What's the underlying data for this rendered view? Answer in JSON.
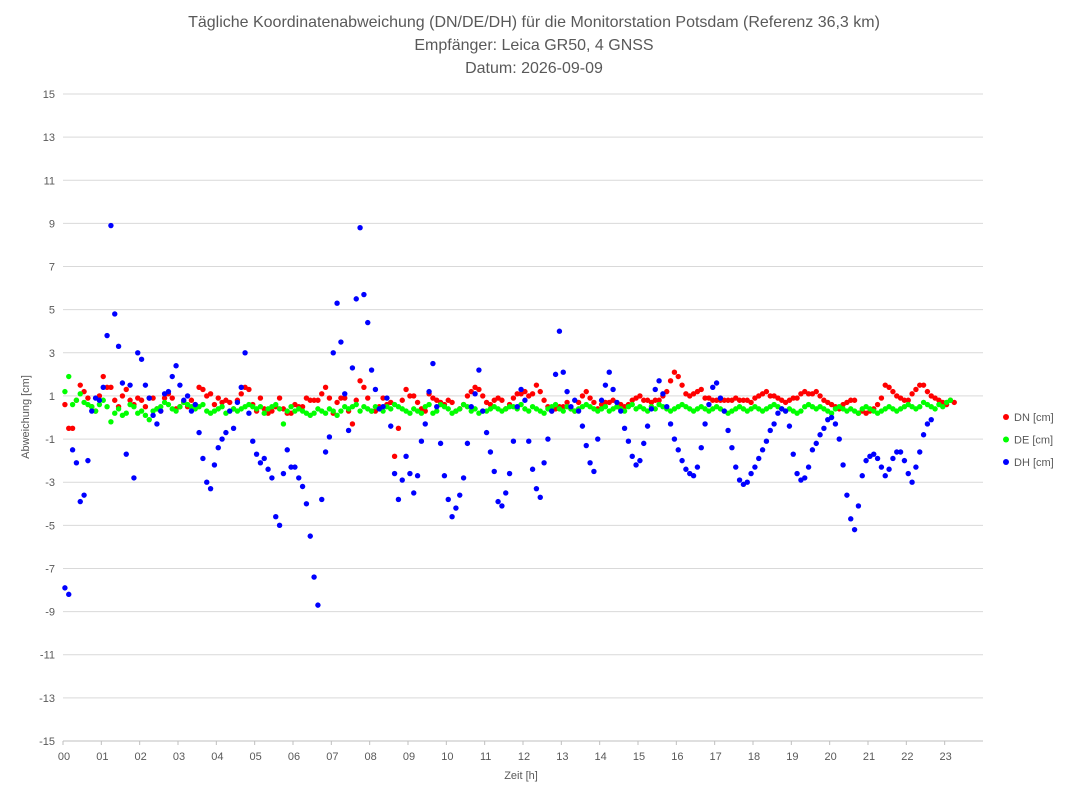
{
  "chart_data": {
    "type": "scatter",
    "title_lines": [
      "Tägliche Koordinatenabweichung (DN/DE/DH) für die Monitorstation Potsdam (Referenz 36,3 km)",
      "Empfänger: Leica GR50, 4 GNSS",
      "Datum: 2026-09-09"
    ],
    "xlabel": "Zeit [h]",
    "ylabel": "Abweichung [cm]",
    "xlim": [
      0,
      24
    ],
    "ylim": [
      -15,
      15
    ],
    "x_ticks": [
      "00",
      "01",
      "02",
      "03",
      "04",
      "05",
      "06",
      "07",
      "08",
      "09",
      "10",
      "11",
      "12",
      "13",
      "14",
      "15",
      "16",
      "17",
      "18",
      "19",
      "20",
      "21",
      "22",
      "23"
    ],
    "y_ticks": [
      15,
      13,
      11,
      9,
      7,
      5,
      3,
      1,
      -1,
      -3,
      -5,
      -7,
      -9,
      -11,
      -13,
      -15
    ],
    "grid": true,
    "legend_position": "right",
    "sample_interval_h": 0.025,
    "series": [
      {
        "name": "DN [cm]",
        "color": "#ff0000",
        "x_start": 0,
        "x_step": 0.1,
        "values": [
          0.6,
          -0.5,
          -0.5,
          0.8,
          1.5,
          1.2,
          0.9,
          0.5,
          0.3,
          1.0,
          1.9,
          1.4,
          1.4,
          0.8,
          0.5,
          1.0,
          1.3,
          0.8,
          0.6,
          0.9,
          0.8,
          0.5,
          0.9,
          0.9,
          0.4,
          0.3,
          0.9,
          1.1,
          0.9,
          0.4,
          0.5,
          0.7,
          0.5,
          0.8,
          0.6,
          1.4,
          1.3,
          1.0,
          1.1,
          0.6,
          0.9,
          0.7,
          0.8,
          0.7,
          0.4,
          0.8,
          1.1,
          1.4,
          1.3,
          0.6,
          0.3,
          0.9,
          0.4,
          0.2,
          0.3,
          0.5,
          0.9,
          0.4,
          0.2,
          0.2,
          0.6,
          0.5,
          0.5,
          0.9,
          0.8,
          0.8,
          0.8,
          1.1,
          1.4,
          0.9,
          0.2,
          0.7,
          0.9,
          0.9,
          0.3,
          -0.3,
          0.8,
          1.7,
          1.4,
          0.9,
          0.3,
          0.3,
          0.5,
          0.9,
          0.6,
          0.7,
          -1.8,
          -0.5,
          0.8,
          1.3,
          1.0,
          1.0,
          0.7,
          0.4,
          0.3,
          1.1,
          0.9,
          0.8,
          0.7,
          0.6,
          0.8,
          0.7,
          0.3,
          0.4,
          0.6,
          1.0,
          1.2,
          1.4,
          1.3,
          1.0,
          0.7,
          0.6,
          0.8,
          0.9,
          0.8,
          0.4,
          0.6,
          0.9,
          1.1,
          1.1,
          1.2,
          1.0,
          1.1,
          1.5,
          1.2,
          0.8,
          0.5,
          0.3,
          0.4,
          0.5,
          0.5,
          0.7,
          0.4,
          0.3,
          0.7,
          1.0,
          1.2,
          0.9,
          0.7,
          0.4,
          0.6,
          0.7,
          0.7,
          0.8,
          0.5,
          0.6,
          0.5,
          0.6,
          0.8,
          0.9,
          1.0,
          0.8,
          0.8,
          0.7,
          0.8,
          0.8,
          1.0,
          1.2,
          1.7,
          2.1,
          1.9,
          1.5,
          1.1,
          1.0,
          1.1,
          1.2,
          1.3,
          0.9,
          0.9,
          0.8,
          0.8,
          0.8,
          0.8,
          0.8,
          0.8,
          0.9,
          0.8,
          0.8,
          0.8,
          0.7,
          0.9,
          1.0,
          1.1,
          1.2,
          1.0,
          1.0,
          0.9,
          0.8,
          0.7,
          0.8,
          0.9,
          0.9,
          1.1,
          1.2,
          1.1,
          1.1,
          1.2,
          1.0,
          0.8,
          0.7,
          0.6,
          0.5,
          0.4,
          0.6,
          0.7,
          0.8,
          0.8,
          0.2,
          0.3,
          0.2,
          0.3,
          0.4,
          0.6,
          0.9,
          1.5,
          1.4,
          1.2,
          1.0,
          0.9,
          0.8,
          0.8,
          1.1,
          1.3,
          1.5,
          1.5,
          1.2,
          1.0,
          0.9,
          0.8,
          0.7,
          0.6,
          0.8,
          0.7
        ]
      },
      {
        "name": "DE [cm]",
        "color": "#00ff00",
        "x_start": 0,
        "x_step": 0.1,
        "values": [
          1.2,
          1.9,
          0.6,
          0.8,
          1.1,
          0.7,
          0.6,
          0.5,
          0.3,
          0.6,
          0.8,
          0.5,
          -0.2,
          0.2,
          0.4,
          0.1,
          0.2,
          0.6,
          0.5,
          0.2,
          0.3,
          0.1,
          -0.1,
          0.3,
          0.4,
          0.5,
          0.7,
          0.6,
          0.4,
          0.3,
          0.5,
          0.7,
          0.6,
          0.5,
          0.4,
          0.5,
          0.6,
          0.3,
          0.2,
          0.3,
          0.4,
          0.5,
          0.2,
          0.3,
          0.4,
          0.3,
          0.4,
          0.5,
          0.6,
          0.5,
          0.4,
          0.5,
          0.2,
          0.4,
          0.5,
          0.6,
          0.4,
          -0.3,
          0.3,
          0.5,
          0.3,
          0.4,
          0.3,
          0.2,
          0.1,
          0.2,
          0.4,
          0.3,
          0.2,
          0.4,
          0.3,
          0.1,
          0.3,
          0.5,
          0.4,
          0.5,
          0.6,
          0.3,
          0.5,
          0.4,
          0.3,
          0.5,
          0.4,
          0.3,
          0.5,
          0.4,
          0.6,
          0.5,
          0.4,
          0.3,
          0.2,
          0.4,
          0.3,
          0.2,
          0.5,
          0.6,
          0.2,
          0.3,
          0.6,
          0.5,
          0.4,
          0.2,
          0.3,
          0.4,
          0.6,
          0.5,
          0.3,
          0.4,
          0.2,
          0.3,
          0.3,
          0.4,
          0.5,
          0.4,
          0.3,
          0.4,
          0.5,
          0.5,
          0.4,
          0.6,
          0.4,
          0.3,
          0.5,
          0.4,
          0.3,
          0.2,
          0.4,
          0.5,
          0.6,
          0.4,
          0.3,
          0.5,
          0.4,
          0.3,
          0.4,
          0.5,
          0.6,
          0.5,
          0.4,
          0.3,
          0.4,
          0.5,
          0.3,
          0.4,
          0.5,
          0.4,
          0.3,
          0.5,
          0.6,
          0.4,
          0.5,
          0.4,
          0.3,
          0.5,
          0.4,
          0.6,
          0.5,
          0.4,
          0.3,
          0.4,
          0.5,
          0.6,
          0.5,
          0.4,
          0.3,
          0.4,
          0.5,
          0.4,
          0.3,
          0.4,
          0.5,
          0.4,
          0.3,
          0.2,
          0.3,
          0.4,
          0.5,
          0.4,
          0.3,
          0.4,
          0.5,
          0.4,
          0.3,
          0.4,
          0.5,
          0.6,
          0.5,
          0.4,
          0.3,
          0.4,
          0.3,
          0.2,
          0.3,
          0.5,
          0.6,
          0.5,
          0.4,
          0.5,
          0.4,
          0.3,
          0.2,
          0.4,
          0.5,
          0.4,
          0.3,
          0.4,
          0.3,
          0.2,
          0.4,
          0.5,
          0.4,
          0.3,
          0.2,
          0.3,
          0.4,
          0.5,
          0.4,
          0.3,
          0.4,
          0.5,
          0.6,
          0.5,
          0.4,
          0.5,
          0.7,
          0.6,
          0.5,
          0.4,
          0.6,
          0.5,
          0.7,
          0.8
        ]
      },
      {
        "name": "DH [cm]",
        "color": "#0000ff",
        "x_start": 0,
        "x_step": 0.1,
        "values": [
          -7.9,
          -8.2,
          -1.5,
          -2.1,
          -3.9,
          -3.6,
          -2.0,
          0.3,
          0.9,
          0.8,
          1.4,
          3.8,
          8.9,
          4.8,
          3.3,
          1.6,
          -1.7,
          1.5,
          -2.8,
          3.0,
          2.7,
          1.5,
          0.9,
          0.1,
          -0.3,
          0.3,
          1.1,
          1.2,
          1.9,
          2.4,
          1.5,
          0.8,
          1.0,
          0.3,
          0.6,
          -0.7,
          -1.9,
          -3.0,
          -3.3,
          -2.2,
          -1.4,
          -1.0,
          -0.7,
          0.3,
          -0.5,
          0.7,
          1.4,
          3.0,
          0.2,
          -1.1,
          -1.7,
          -2.1,
          -1.9,
          -2.4,
          -2.8,
          -4.6,
          -5.0,
          -2.6,
          -1.5,
          -2.3,
          -2.3,
          -2.8,
          -3.2,
          -4.0,
          -5.5,
          -7.4,
          -8.7,
          -3.8,
          -1.6,
          -0.9,
          3.0,
          5.3,
          3.5,
          1.1,
          -0.6,
          2.3,
          5.5,
          8.8,
          5.7,
          4.4,
          2.2,
          1.3,
          0.4,
          0.5,
          0.9,
          -0.4,
          -2.6,
          -3.8,
          -2.9,
          -1.8,
          -2.6,
          -3.5,
          -2.7,
          -1.1,
          -0.3,
          1.2,
          2.5,
          0.5,
          -1.2,
          -2.7,
          -3.8,
          -4.6,
          -4.2,
          -3.6,
          -2.8,
          -1.2,
          0.5,
          1.1,
          2.2,
          0.3,
          -0.7,
          -1.6,
          -2.5,
          -3.9,
          -4.1,
          -3.5,
          -2.6,
          -1.1,
          0.5,
          1.3,
          0.8,
          -1.1,
          -2.4,
          -3.3,
          -3.7,
          -2.1,
          -1.0,
          0.3,
          2.0,
          4.0,
          2.1,
          1.2,
          0.5,
          0.8,
          0.3,
          -0.4,
          -1.3,
          -2.1,
          -2.5,
          -1.0,
          0.8,
          1.5,
          2.1,
          1.3,
          0.7,
          0.3,
          -0.5,
          -1.1,
          -1.8,
          -2.2,
          -2.0,
          -1.2,
          -0.4,
          0.4,
          1.3,
          1.7,
          1.1,
          0.5,
          -0.3,
          -1.0,
          -1.5,
          -2.0,
          -2.4,
          -2.6,
          -2.7,
          -2.3,
          -1.4,
          -0.3,
          0.6,
          1.4,
          1.6,
          0.9,
          0.3,
          -0.6,
          -1.4,
          -2.3,
          -2.9,
          -3.1,
          -3.0,
          -2.6,
          -2.3,
          -1.9,
          -1.5,
          -1.1,
          -0.6,
          -0.3,
          0.2,
          0.4,
          0.3,
          -0.4,
          -1.7,
          -2.6,
          -2.9,
          -2.8,
          -2.3,
          -1.5,
          -1.2,
          -0.8,
          -0.5,
          -0.1,
          0.0,
          -0.3,
          -1.0,
          -2.2,
          -3.6,
          -4.7,
          -5.2,
          -4.1,
          -2.7,
          -2.0,
          -1.8,
          -1.7,
          -1.9,
          -2.3,
          -2.7,
          -2.4,
          -1.9,
          -1.6,
          -1.6,
          -2.0,
          -2.6,
          -3.0,
          -2.3,
          -1.6,
          -0.8,
          -0.3,
          -0.1
        ]
      }
    ]
  }
}
